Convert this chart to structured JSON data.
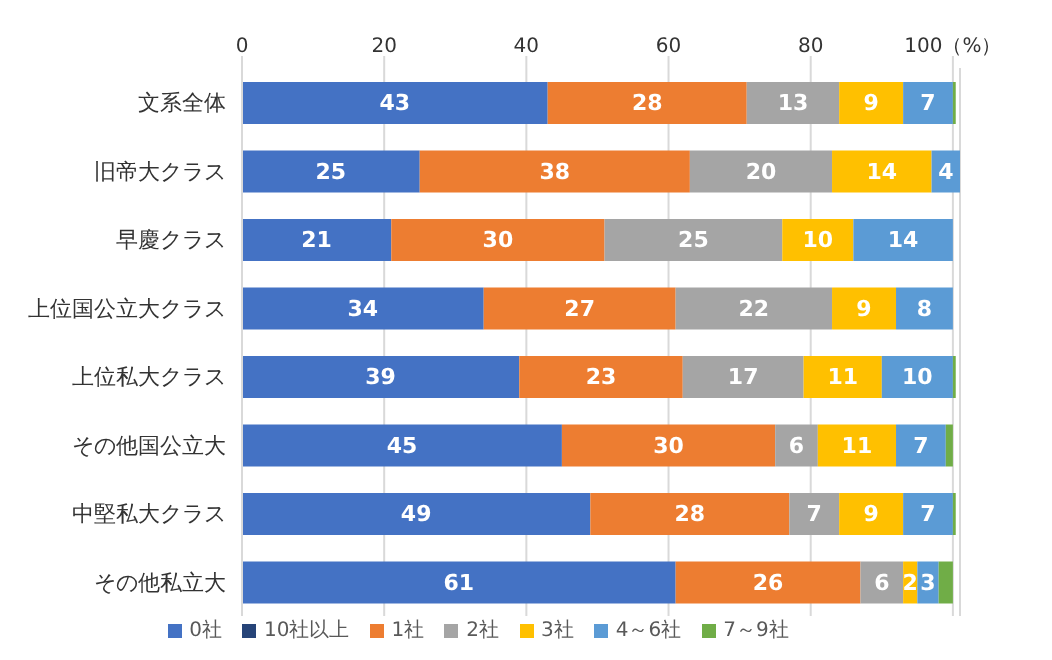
{
  "chart_data": {
    "type": "bar",
    "orientation": "horizontal",
    "stacked": true,
    "categories": [
      "文系全体",
      "旧帝大クラス",
      "早慶クラス",
      "上位国公立大クラス",
      "上位私大クラス",
      "その他国公立大",
      "中堅私大クラス",
      "その他私立大"
    ],
    "series": [
      {
        "name": "0社",
        "color": "#4472c4",
        "values": [
          43,
          25,
          21,
          34,
          39,
          45,
          49,
          61
        ],
        "value_labels": [
          "43",
          "25",
          "21",
          "34",
          "39",
          "45",
          "49",
          "61"
        ]
      },
      {
        "name": "1社",
        "color": "#ed7d31",
        "values": [
          28,
          38,
          30,
          27,
          23,
          30,
          28,
          26
        ],
        "value_labels": [
          "28",
          "38",
          "30",
          "27",
          "23",
          "30",
          "28",
          "26"
        ]
      },
      {
        "name": "2社",
        "color": "#a5a5a5",
        "values": [
          13,
          20,
          25,
          22,
          17,
          6,
          7,
          6
        ],
        "value_labels": [
          "13",
          "20",
          "25",
          "22",
          "17",
          "6",
          "7",
          "6"
        ]
      },
      {
        "name": "3社",
        "color": "#ffc000",
        "values": [
          9,
          14,
          10,
          9,
          11,
          11,
          9,
          2
        ],
        "value_labels": [
          "9",
          "14",
          "10",
          "9",
          "11",
          "11",
          "9",
          "2"
        ]
      },
      {
        "name": "4～6社",
        "color": "#5b9bd5",
        "values": [
          7,
          4,
          14,
          8,
          10,
          7,
          7,
          3
        ],
        "value_labels": [
          "7",
          "4",
          "14",
          "8",
          "10",
          "7",
          "7",
          "3"
        ]
      },
      {
        "name": "7～9社",
        "color": "#70ad47",
        "values": [
          0.4,
          0,
          0,
          0,
          0.4,
          1,
          0.4,
          2
        ],
        "value_labels": [
          null,
          null,
          null,
          null,
          null,
          null,
          null,
          null
        ]
      },
      {
        "name": "10社以上",
        "color": "#264478",
        "values": [
          0,
          0,
          0,
          0,
          0,
          0,
          0,
          0
        ],
        "value_labels": [
          null,
          null,
          null,
          null,
          null,
          null,
          null,
          null
        ]
      }
    ],
    "xlim": [
      0,
      101
    ],
    "xticks": [
      0,
      20,
      40,
      60,
      80,
      {
        "value": 100,
        "label": "100（%）"
      }
    ],
    "grid": "x",
    "legend": "bottom"
  }
}
